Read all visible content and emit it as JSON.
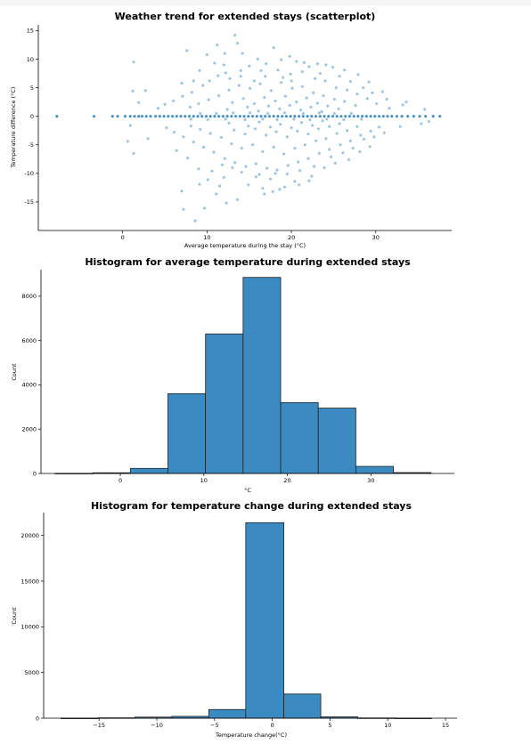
{
  "chart_data": [
    {
      "type": "scatter",
      "title": "Weather trend for extended stays (scatterplot)",
      "xlabel": "Average temperature during the stay (°C)",
      "ylabel": "Temperature difference (°C)",
      "xlim": [
        -10,
        39
      ],
      "ylim": [
        -20,
        16
      ],
      "xticks": [
        "0",
        "10",
        "20",
        "30"
      ],
      "yticks": [
        "15",
        "10",
        "5",
        "0",
        "-5",
        "-10",
        "-15"
      ],
      "color": "#1f77b4",
      "points": [
        [
          -7.8,
          0
        ],
        [
          -3.4,
          0
        ],
        [
          -1.2,
          0
        ],
        [
          -0.6,
          0
        ],
        [
          0.3,
          0
        ],
        [
          0.9,
          0
        ],
        [
          1.4,
          0
        ],
        [
          1.9,
          0
        ],
        [
          2.3,
          0
        ],
        [
          2.8,
          0
        ],
        [
          3.3,
          0
        ],
        [
          3.9,
          0
        ],
        [
          4.4,
          0
        ],
        [
          4.9,
          0
        ],
        [
          5.4,
          0
        ],
        [
          5.9,
          0
        ],
        [
          6.4,
          0
        ],
        [
          6.9,
          0
        ],
        [
          7.4,
          0
        ],
        [
          7.9,
          0
        ],
        [
          8.4,
          0
        ],
        [
          8.9,
          0
        ],
        [
          9.4,
          0
        ],
        [
          9.9,
          0
        ],
        [
          10.4,
          0
        ],
        [
          10.9,
          0
        ],
        [
          11.4,
          0
        ],
        [
          11.9,
          0
        ],
        [
          12.4,
          0
        ],
        [
          12.9,
          0
        ],
        [
          13.4,
          0
        ],
        [
          13.9,
          0
        ],
        [
          14.4,
          0
        ],
        [
          14.9,
          0
        ],
        [
          15.4,
          0
        ],
        [
          15.9,
          0
        ],
        [
          16.4,
          0
        ],
        [
          16.9,
          0
        ],
        [
          17.4,
          0
        ],
        [
          17.9,
          0
        ],
        [
          18.4,
          0
        ],
        [
          18.9,
          0
        ],
        [
          19.4,
          0
        ],
        [
          19.9,
          0
        ],
        [
          20.4,
          0
        ],
        [
          20.9,
          0
        ],
        [
          21.4,
          0
        ],
        [
          21.9,
          0
        ],
        [
          22.4,
          0
        ],
        [
          22.9,
          0
        ],
        [
          23.4,
          0
        ],
        [
          23.9,
          0
        ],
        [
          24.4,
          0
        ],
        [
          24.9,
          0
        ],
        [
          25.4,
          0
        ],
        [
          25.9,
          0
        ],
        [
          26.4,
          0
        ],
        [
          26.9,
          0
        ],
        [
          27.4,
          0
        ],
        [
          27.9,
          0
        ],
        [
          28.4,
          0
        ],
        [
          28.9,
          0
        ],
        [
          29.4,
          0
        ],
        [
          29.9,
          0
        ],
        [
          30.4,
          0
        ],
        [
          30.9,
          0
        ],
        [
          31.4,
          0
        ],
        [
          31.9,
          0
        ],
        [
          32.5,
          0
        ],
        [
          33.1,
          0
        ],
        [
          33.8,
          0
        ],
        [
          34.5,
          0
        ],
        [
          35.2,
          0
        ],
        [
          35.9,
          0
        ],
        [
          36.8,
          0
        ],
        [
          37.6,
          0
        ],
        [
          1.3,
          9.5
        ],
        [
          7.6,
          11.5
        ],
        [
          11.2,
          12.5
        ],
        [
          13.3,
          14.2
        ],
        [
          13.6,
          12.8
        ],
        [
          14.2,
          11.0
        ],
        [
          17.9,
          12.0
        ],
        [
          19.8,
          10.5
        ],
        [
          12.0,
          9.0
        ],
        [
          10.0,
          10.8
        ],
        [
          18.8,
          9.9
        ],
        [
          20.6,
          9.6
        ],
        [
          22.1,
          8.7
        ],
        [
          24.1,
          9.0
        ],
        [
          16.4,
          8.0
        ],
        [
          8.6,
          -18.3
        ],
        [
          7.2,
          -16.3
        ],
        [
          9.7,
          -16.1
        ],
        [
          12.3,
          -15.2
        ],
        [
          13.6,
          -14.6
        ],
        [
          11.1,
          -13.6
        ],
        [
          7.0,
          -13.1
        ],
        [
          17.8,
          -13.2
        ],
        [
          16.6,
          -12.6
        ],
        [
          19.2,
          -12.4
        ],
        [
          14.9,
          -12.0
        ],
        [
          9.1,
          -11.9
        ],
        [
          20.4,
          -11.4
        ],
        [
          12.0,
          -10.7
        ],
        [
          22.4,
          -10.5
        ],
        [
          18.1,
          -10.0
        ],
        [
          15.8,
          -10.6
        ],
        [
          10.6,
          -9.6
        ],
        [
          33.2,
          2.0
        ],
        [
          33.6,
          2.5
        ],
        [
          35.8,
          1.2
        ],
        [
          36.3,
          -0.9
        ],
        [
          35.4,
          -1.3
        ],
        [
          32.9,
          -1.8
        ],
        [
          31.6,
          1.4
        ],
        [
          0.9,
          -1.6
        ],
        [
          0.6,
          -4.4
        ],
        [
          1.3,
          -6.5
        ],
        [
          1.9,
          2.4
        ],
        [
          1.2,
          4.4
        ],
        [
          2.7,
          4.5
        ],
        [
          3.0,
          -3.9
        ],
        [
          10.3,
          6.2
        ],
        [
          12.2,
          7.6
        ],
        [
          14.0,
          8.0
        ],
        [
          15.6,
          6.2
        ],
        [
          16.9,
          7.0
        ],
        [
          18.4,
          8.1
        ],
        [
          19.9,
          7.4
        ],
        [
          21.3,
          7.8
        ],
        [
          22.8,
          6.6
        ],
        [
          24.0,
          6.2
        ],
        [
          25.3,
          5.0
        ],
        [
          26.6,
          4.6
        ],
        [
          27.8,
          3.9
        ],
        [
          29.0,
          3.1
        ],
        [
          9.5,
          5.4
        ],
        [
          8.2,
          4.2
        ],
        [
          7.1,
          3.5
        ],
        [
          6.0,
          2.7
        ],
        [
          5.0,
          2.1
        ],
        [
          4.2,
          1.4
        ],
        [
          10.8,
          -6.3
        ],
        [
          12.1,
          -7.4
        ],
        [
          13.3,
          -8.1
        ],
        [
          14.6,
          -8.8
        ],
        [
          15.8,
          -8.3
        ],
        [
          17.1,
          -9.1
        ],
        [
          18.3,
          -9.4
        ],
        [
          19.6,
          -8.6
        ],
        [
          20.8,
          -8.0
        ],
        [
          22.0,
          -7.4
        ],
        [
          23.3,
          -6.5
        ],
        [
          24.5,
          -5.8
        ],
        [
          25.8,
          -5.0
        ],
        [
          27.0,
          -4.3
        ],
        [
          28.2,
          -3.3
        ],
        [
          29.4,
          -2.6
        ],
        [
          9.6,
          -5.4
        ],
        [
          8.4,
          -4.5
        ],
        [
          7.2,
          -3.6
        ],
        [
          6.1,
          -2.8
        ],
        [
          5.2,
          -2.0
        ],
        [
          11.4,
          3.6
        ],
        [
          12.6,
          4.6
        ],
        [
          13.8,
          5.4
        ],
        [
          15.1,
          4.9
        ],
        [
          16.3,
          5.7
        ],
        [
          17.6,
          4.5
        ],
        [
          18.8,
          5.9
        ],
        [
          20.1,
          4.9
        ],
        [
          21.3,
          5.2
        ],
        [
          22.6,
          4.1
        ],
        [
          23.8,
          3.6
        ],
        [
          25.1,
          3.0
        ],
        [
          26.3,
          2.6
        ],
        [
          27.6,
          1.9
        ],
        [
          10.2,
          2.9
        ],
        [
          9.0,
          2.2
        ],
        [
          8.0,
          1.6
        ],
        [
          13.0,
          2.4
        ],
        [
          14.3,
          3.1
        ],
        [
          15.6,
          2.2
        ],
        [
          16.8,
          3.3
        ],
        [
          18.1,
          2.7
        ],
        [
          19.3,
          3.5
        ],
        [
          20.6,
          2.5
        ],
        [
          21.8,
          3.2
        ],
        [
          23.1,
          2.3
        ],
        [
          24.3,
          1.8
        ],
        [
          25.6,
          1.3
        ],
        [
          11.7,
          -3.7
        ],
        [
          12.9,
          -4.8
        ],
        [
          14.1,
          -5.6
        ],
        [
          15.4,
          -5.0
        ],
        [
          16.6,
          -6.2
        ],
        [
          17.9,
          -5.4
        ],
        [
          19.1,
          -6.6
        ],
        [
          20.4,
          -5.6
        ],
        [
          21.6,
          -5.0
        ],
        [
          22.9,
          -4.3
        ],
        [
          24.1,
          -3.9
        ],
        [
          25.4,
          -3.0
        ],
        [
          26.6,
          -2.5
        ],
        [
          27.8,
          -1.8
        ],
        [
          10.4,
          -3.0
        ],
        [
          9.2,
          -2.3
        ],
        [
          8.1,
          -1.7
        ],
        [
          13.2,
          -2.4
        ],
        [
          14.5,
          -3.1
        ],
        [
          15.7,
          -2.2
        ],
        [
          17.0,
          -3.3
        ],
        [
          18.2,
          -2.7
        ],
        [
          19.5,
          -3.6
        ],
        [
          20.7,
          -2.6
        ],
        [
          22.0,
          -3.1
        ],
        [
          23.2,
          -2.2
        ],
        [
          24.5,
          -1.8
        ],
        [
          25.7,
          -1.3
        ],
        [
          12.4,
          1.2
        ],
        [
          14.8,
          1.6
        ],
        [
          16.1,
          0.9
        ],
        [
          17.3,
          1.8
        ],
        [
          18.6,
          1.3
        ],
        [
          19.8,
          1.9
        ],
        [
          21.1,
          1.1
        ],
        [
          22.3,
          1.6
        ],
        [
          23.6,
          0.8
        ],
        [
          12.6,
          -1.2
        ],
        [
          14.9,
          -1.7
        ],
        [
          16.2,
          -1.0
        ],
        [
          17.5,
          -1.9
        ],
        [
          18.7,
          -1.4
        ],
        [
          20.0,
          -2.0
        ],
        [
          21.2,
          -1.1
        ],
        [
          22.5,
          -1.6
        ],
        [
          23.7,
          -0.8
        ],
        [
          16.0,
          10.0
        ],
        [
          17.0,
          9.2
        ],
        [
          15.0,
          8.8
        ],
        [
          19.0,
          6.8
        ],
        [
          20.0,
          6.2
        ],
        [
          14.0,
          7.0
        ],
        [
          12.7,
          6.6
        ],
        [
          11.3,
          7.1
        ],
        [
          17.5,
          -11.0
        ],
        [
          16.2,
          -10.2
        ],
        [
          14.1,
          -9.8
        ],
        [
          19.5,
          -10.1
        ],
        [
          21.0,
          -9.5
        ],
        [
          13.0,
          -9.0
        ],
        [
          11.8,
          -8.5
        ],
        [
          22.7,
          -8.8
        ],
        [
          24.7,
          -7.1
        ],
        [
          26.1,
          -6.4
        ],
        [
          27.3,
          -5.6
        ],
        [
          28.6,
          -4.0
        ],
        [
          29.8,
          -3.6
        ],
        [
          30.4,
          -1.9
        ],
        [
          30.1,
          2.2
        ],
        [
          29.6,
          4.1
        ],
        [
          28.5,
          5.0
        ],
        [
          27.0,
          6.1
        ],
        [
          25.7,
          7.0
        ],
        [
          23.4,
          7.5
        ],
        [
          12.1,
          11.0
        ],
        [
          10.9,
          9.3
        ],
        [
          9.1,
          8.0
        ],
        [
          8.4,
          6.2
        ],
        [
          7.0,
          5.8
        ],
        [
          6.4,
          -6.0
        ],
        [
          7.7,
          -7.3
        ],
        [
          9.0,
          -9.2
        ],
        [
          10.1,
          -11.1
        ],
        [
          11.5,
          -12.2
        ],
        [
          16.8,
          -13.6
        ],
        [
          18.6,
          -12.8
        ],
        [
          20.9,
          -12.0
        ],
        [
          22.1,
          -11.3
        ],
        [
          23.9,
          -9.0
        ],
        [
          25.2,
          -8.2
        ],
        [
          26.8,
          -7.6
        ],
        [
          28.1,
          -6.2
        ],
        [
          29.3,
          -5.3
        ],
        [
          31.0,
          -2.9
        ],
        [
          31.3,
          3.0
        ],
        [
          30.8,
          4.3
        ],
        [
          29.2,
          6.0
        ],
        [
          27.9,
          7.3
        ],
        [
          26.3,
          8.1
        ],
        [
          24.9,
          8.6
        ],
        [
          23.1,
          9.2
        ],
        [
          21.5,
          9.4
        ],
        [
          14.5,
          -0.6
        ],
        [
          15.1,
          0.6
        ],
        [
          16.6,
          -0.5
        ],
        [
          17.2,
          0.5
        ],
        [
          18.3,
          -0.6
        ],
        [
          19.2,
          0.6
        ],
        [
          20.3,
          -0.5
        ],
        [
          21.4,
          0.5
        ],
        [
          22.2,
          -0.6
        ],
        [
          23.3,
          0.6
        ],
        [
          24.2,
          -0.5
        ],
        [
          25.1,
          0.5
        ],
        [
          26.2,
          -0.6
        ],
        [
          27.1,
          0.5
        ],
        [
          28.3,
          -0.5
        ],
        [
          11.1,
          0.5
        ],
        [
          12.2,
          -0.5
        ],
        [
          13.1,
          0.6
        ],
        [
          10.1,
          -0.6
        ],
        [
          9.2,
          0.5
        ],
        [
          8.1,
          -0.5
        ]
      ]
    },
    {
      "type": "bar",
      "title": "Histogram for average temperature during extended stays",
      "xlabel": "°C",
      "ylabel": "Count",
      "xlim": [
        -9.5,
        40
      ],
      "ylim": [
        0,
        9200
      ],
      "xticks": [
        "0",
        "10",
        "20",
        "30"
      ],
      "yticks": [
        "0",
        "2000",
        "4000",
        "6000",
        "8000"
      ],
      "color": "#3b8bc2",
      "bin_edges": [
        -7.8,
        -3.3,
        1.2,
        5.7,
        10.2,
        14.7,
        19.2,
        23.7,
        28.2,
        32.7,
        37.2
      ],
      "values": [
        5,
        30,
        230,
        3600,
        6300,
        8850,
        3200,
        2950,
        320,
        40
      ]
    },
    {
      "type": "bar",
      "title": "Histogram for temperature change during extended stays",
      "xlabel": "Temperature change(°C)",
      "ylabel": "Count",
      "xlim": [
        -19.8,
        16
      ],
      "ylim": [
        0,
        22500
      ],
      "xticks": [
        "−15",
        "−10",
        "−5",
        "0",
        "5",
        "10",
        "15"
      ],
      "yticks": [
        "0",
        "5000",
        "10000",
        "15000",
        "20000"
      ],
      "color": "#3b8bc2",
      "bin_edges": [
        -18.3,
        -15.1,
        -11.9,
        -8.7,
        -5.5,
        -2.3,
        1.0,
        4.2,
        7.4,
        10.6,
        13.8
      ],
      "values": [
        5,
        40,
        120,
        200,
        950,
        21400,
        2650,
        150,
        25,
        5
      ]
    }
  ]
}
